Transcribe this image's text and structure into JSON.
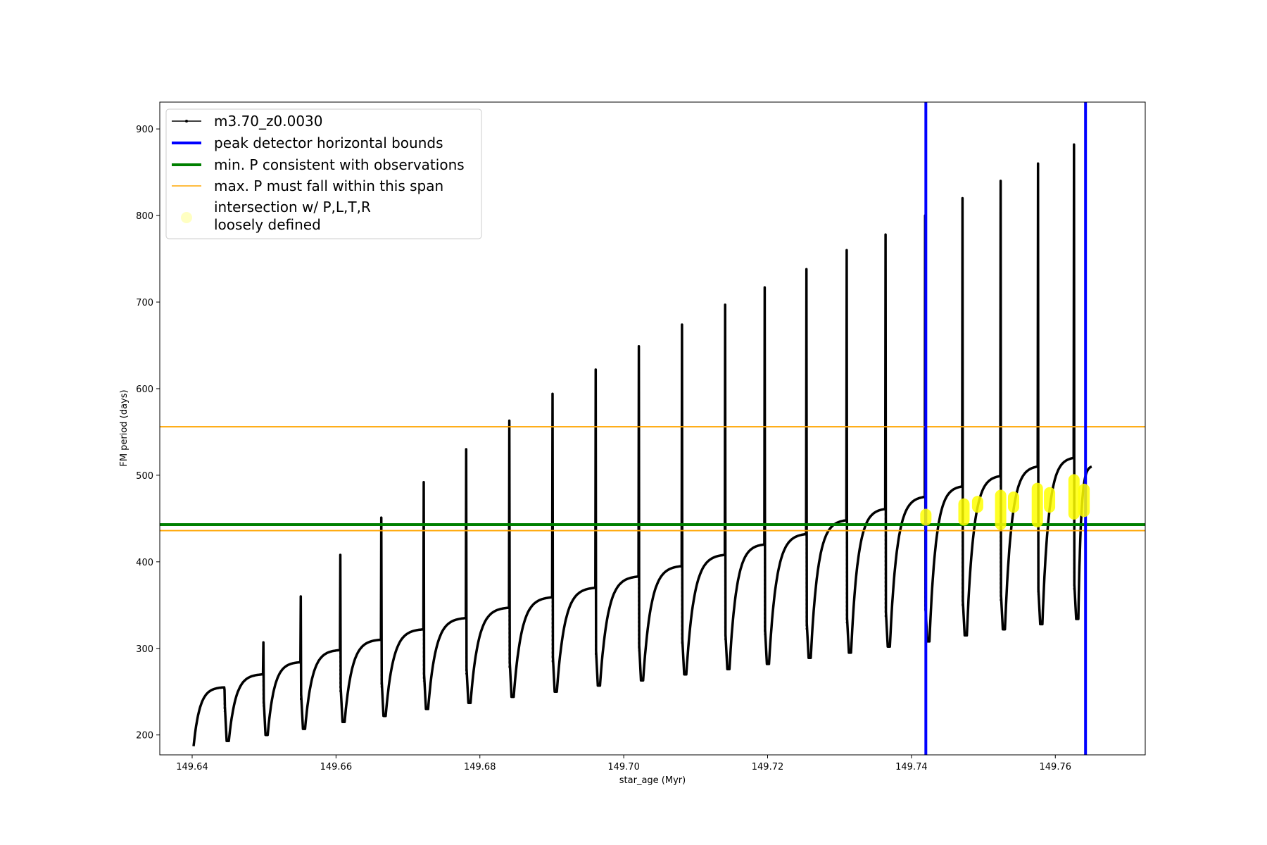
{
  "chart_data": {
    "type": "line",
    "xlabel": "star_age (Myr)",
    "ylabel": "FM period (days)",
    "xlim": [
      149.6355,
      149.7725
    ],
    "ylim": [
      177,
      931
    ],
    "xticks": [
      149.64,
      149.66,
      149.68,
      149.7,
      149.72,
      149.74,
      149.76
    ],
    "xtick_labels": [
      "149.64",
      "149.66",
      "149.68",
      "149.70",
      "149.72",
      "149.74",
      "149.76"
    ],
    "yticks": [
      200,
      300,
      400,
      500,
      600,
      700,
      800,
      900
    ],
    "ytick_labels": [
      "200",
      "300",
      "400",
      "500",
      "600",
      "700",
      "800",
      "900"
    ],
    "grid": false,
    "legend_position": "top-left",
    "series_color": "#000000",
    "cycles": [
      {
        "start": 149.6402,
        "spike_x": 149.6445,
        "pre_peak": 255,
        "spike_peak": 252,
        "trough": 187
      },
      {
        "start": 149.6451,
        "spike_x": 149.6499,
        "pre_peak": 270,
        "spike_peak": 307,
        "trough": 193
      },
      {
        "start": 149.6505,
        "spike_x": 149.6551,
        "pre_peak": 284,
        "spike_peak": 360,
        "trough": 200
      },
      {
        "start": 149.6557,
        "spike_x": 149.6606,
        "pre_peak": 298,
        "spike_peak": 408,
        "trough": 207
      },
      {
        "start": 149.6612,
        "spike_x": 149.6663,
        "pre_peak": 310,
        "spike_peak": 451,
        "trough": 215
      },
      {
        "start": 149.6669,
        "spike_x": 149.6722,
        "pre_peak": 322,
        "spike_peak": 492,
        "trough": 222
      },
      {
        "start": 149.6728,
        "spike_x": 149.6781,
        "pre_peak": 335,
        "spike_peak": 530,
        "trough": 230
      },
      {
        "start": 149.6787,
        "spike_x": 149.6841,
        "pre_peak": 347,
        "spike_peak": 563,
        "trough": 237
      },
      {
        "start": 149.6847,
        "spike_x": 149.6901,
        "pre_peak": 359,
        "spike_peak": 594,
        "trough": 244
      },
      {
        "start": 149.6907,
        "spike_x": 149.6961,
        "pre_peak": 370,
        "spike_peak": 622,
        "trough": 250
      },
      {
        "start": 149.6967,
        "spike_x": 149.7021,
        "pre_peak": 383,
        "spike_peak": 649,
        "trough": 257
      },
      {
        "start": 149.7027,
        "spike_x": 149.7081,
        "pre_peak": 395,
        "spike_peak": 674,
        "trough": 263
      },
      {
        "start": 149.7087,
        "spike_x": 149.7141,
        "pre_peak": 408,
        "spike_peak": 697,
        "trough": 270
      },
      {
        "start": 149.7147,
        "spike_x": 149.7196,
        "pre_peak": 420,
        "spike_peak": 717,
        "trough": 276
      },
      {
        "start": 149.7202,
        "spike_x": 149.7254,
        "pre_peak": 432,
        "spike_peak": 738,
        "trough": 282
      },
      {
        "start": 149.726,
        "spike_x": 149.731,
        "pre_peak": 448,
        "spike_peak": 760,
        "trough": 289
      },
      {
        "start": 149.7316,
        "spike_x": 149.7364,
        "pre_peak": 461,
        "spike_peak": 778,
        "trough": 295
      },
      {
        "start": 149.737,
        "spike_x": 149.7419,
        "pre_peak": 475,
        "spike_peak": 800,
        "trough": 302
      },
      {
        "start": 149.7425,
        "spike_x": 149.7471,
        "pre_peak": 487,
        "spike_peak": 820,
        "trough": 308
      },
      {
        "start": 149.7477,
        "spike_x": 149.7524,
        "pre_peak": 499,
        "spike_peak": 840,
        "trough": 315
      },
      {
        "start": 149.753,
        "spike_x": 149.7576,
        "pre_peak": 510,
        "spike_peak": 860,
        "trough": 322
      },
      {
        "start": 149.7582,
        "spike_x": 149.7626,
        "pre_peak": 520,
        "spike_peak": 882,
        "trough": 328
      },
      {
        "start": 149.7632,
        "spike_x": null,
        "pre_peak": 510,
        "spike_peak": null,
        "trough": 334
      }
    ],
    "series_end": 149.7651,
    "vlines": {
      "x": [
        149.742,
        149.7642
      ],
      "color": "#0000ff"
    },
    "min_p_line": {
      "y": 443,
      "color": "#008000"
    },
    "max_p_span": {
      "y": [
        436,
        556
      ],
      "color": "#ffa500"
    },
    "intersections": {
      "color": "#ffff00",
      "x": [
        149.742,
        149.7473,
        149.7492,
        149.7524,
        149.7542,
        149.7575,
        149.7592,
        149.7626,
        149.764
      ],
      "y_low": [
        445,
        445,
        463,
        440,
        460,
        443,
        460,
        452,
        455
      ],
      "y_high": [
        458,
        470,
        473,
        480,
        478,
        488,
        483,
        498,
        487
      ]
    },
    "legend": [
      {
        "label": "m3.70_z0.0030",
        "style": "line-marker",
        "color": "#000000"
      },
      {
        "label": "peak detector horizontal bounds",
        "style": "thick-line",
        "color": "#0000ff"
      },
      {
        "label": "min. P consistent with observations",
        "style": "thick-line",
        "color": "#008000"
      },
      {
        "label": "max. P must fall within this span",
        "style": "thin-line",
        "color": "#ffa500"
      },
      {
        "label": "intersection w/ P,L,T,R",
        "label2": "loosely defined",
        "style": "dot",
        "color": "#ffff99"
      }
    ]
  }
}
